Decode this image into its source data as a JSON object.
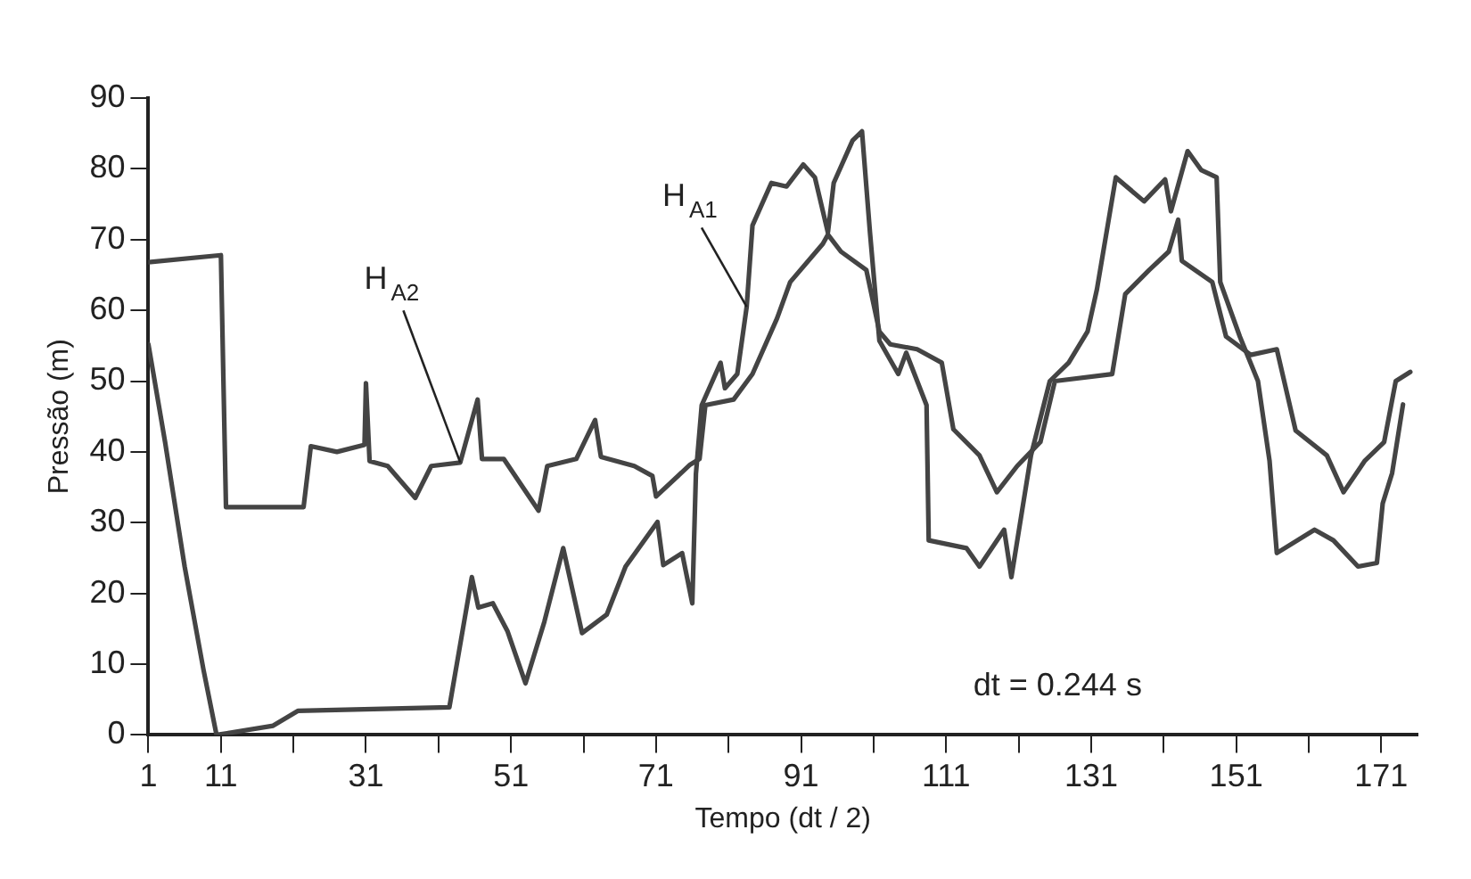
{
  "chart_data": {
    "type": "line",
    "xlabel": "Tempo (dt / 2)",
    "ylabel": "Pressão (m)",
    "xlim": [
      1,
      176
    ],
    "ylim": [
      0,
      90
    ],
    "xticks": [
      1,
      11,
      {
        "value": 21,
        "label": null
      },
      31,
      {
        "value": 41,
        "label": null
      },
      51,
      {
        "value": 61,
        "label": null
      },
      71,
      {
        "value": 81,
        "label": null
      },
      91,
      {
        "value": 101,
        "label": null
      },
      111,
      {
        "value": 121,
        "label": null
      },
      131,
      {
        "value": 141,
        "label": null
      },
      151,
      {
        "value": 161,
        "label": null
      },
      171
    ],
    "yticks": [
      0,
      10,
      20,
      30,
      40,
      50,
      60,
      70,
      80,
      90
    ],
    "grid": false,
    "legend": false,
    "marker": "none",
    "line_style": "solid",
    "annotations": [
      "dt = 0.244 s"
    ],
    "series": [
      {
        "name": "H$_{A1}$",
        "color": "#444444",
        "x": [
          1,
          3.3,
          6,
          8.6,
          10.4,
          18.2,
          21.6,
          42.5,
          45.6,
          46.5,
          48.5,
          50.5,
          53,
          55.6,
          58.2,
          60.8,
          64.2,
          66.8,
          71.2,
          72,
          74.6,
          76,
          76.5,
          77.3,
          79.9,
          80.5,
          82.2,
          83.5,
          84.3,
          86.9,
          89,
          91.3,
          92.9,
          94.7,
          95.5,
          98.1,
          99.4,
          100.5,
          101.8,
          104.4,
          105.5,
          108.3,
          108.6,
          113.8,
          115.6,
          119,
          120,
          122.7,
          125.3,
          127.9,
          130.5,
          131.8,
          134.4,
          138.3,
          141.2,
          142,
          144.3,
          146.2,
          148.3,
          148.8,
          151.5,
          154,
          155.6,
          156.6,
          161.8,
          164.4,
          167.8,
          170.4,
          171.2,
          172.5,
          174
        ],
        "values": [
          55.2,
          41.4,
          23.8,
          9.2,
          0,
          1.3,
          3.4,
          3.9,
          22.3,
          18,
          18.6,
          14.7,
          7.3,
          16,
          26.4,
          14.4,
          17,
          23.8,
          30.1,
          24,
          25.7,
          18.6,
          36.9,
          46.6,
          52.6,
          49,
          51,
          60.5,
          72,
          78,
          77.5,
          80.6,
          78.8,
          71,
          78,
          84,
          85.3,
          71,
          55.7,
          51,
          54,
          46.6,
          27.5,
          26.4,
          23.8,
          29,
          22.3,
          39.5,
          50,
          52.6,
          57,
          63,
          78.8,
          75.4,
          78.5,
          74,
          82.5,
          79.8,
          78.8,
          64,
          56.3,
          50,
          38.7,
          25.7,
          29,
          27.5,
          23.8,
          24.3,
          32.7,
          37,
          46.7
        ]
      },
      {
        "name": "H$_{A2}$",
        "color": "#444444",
        "x": [
          1,
          11,
          11.7,
          22.4,
          23.4,
          27,
          30.8,
          31,
          31.5,
          34,
          37.8,
          40,
          44,
          46.4,
          47,
          50,
          54.8,
          56,
          60,
          62.6,
          63.4,
          68,
          70.5,
          71,
          75.7,
          77,
          77.8,
          81.7,
          84.3,
          87.7,
          89.5,
          94,
          94.7,
          96.5,
          100,
          101.8,
          103.3,
          107,
          110.4,
          112,
          115.6,
          118,
          120.8,
          124,
          126,
          133.9,
          135.7,
          139,
          141.7,
          143,
          143.5,
          147.7,
          149.6,
          153,
          156.6,
          159.2,
          163.5,
          165.8,
          168.7,
          171.4,
          173,
          175
        ],
        "values": [
          66.8,
          67.8,
          32.2,
          32.2,
          40.8,
          40,
          41,
          49.7,
          38.7,
          38,
          33.5,
          38,
          38.5,
          47.4,
          39,
          39,
          31.7,
          38,
          39,
          44.5,
          39.3,
          38,
          36.6,
          33.7,
          38.2,
          39,
          46.6,
          47.4,
          51,
          58.9,
          64,
          69.4,
          70.7,
          68.3,
          65.7,
          57,
          55.2,
          54.5,
          52.6,
          43.2,
          39.5,
          34.3,
          38,
          41.4,
          50,
          51,
          62.3,
          65.7,
          68.3,
          72.8,
          67,
          64,
          56.3,
          53.7,
          54.5,
          43,
          39.5,
          34.3,
          38.7,
          41.4,
          50,
          51.3
        ]
      }
    ]
  }
}
